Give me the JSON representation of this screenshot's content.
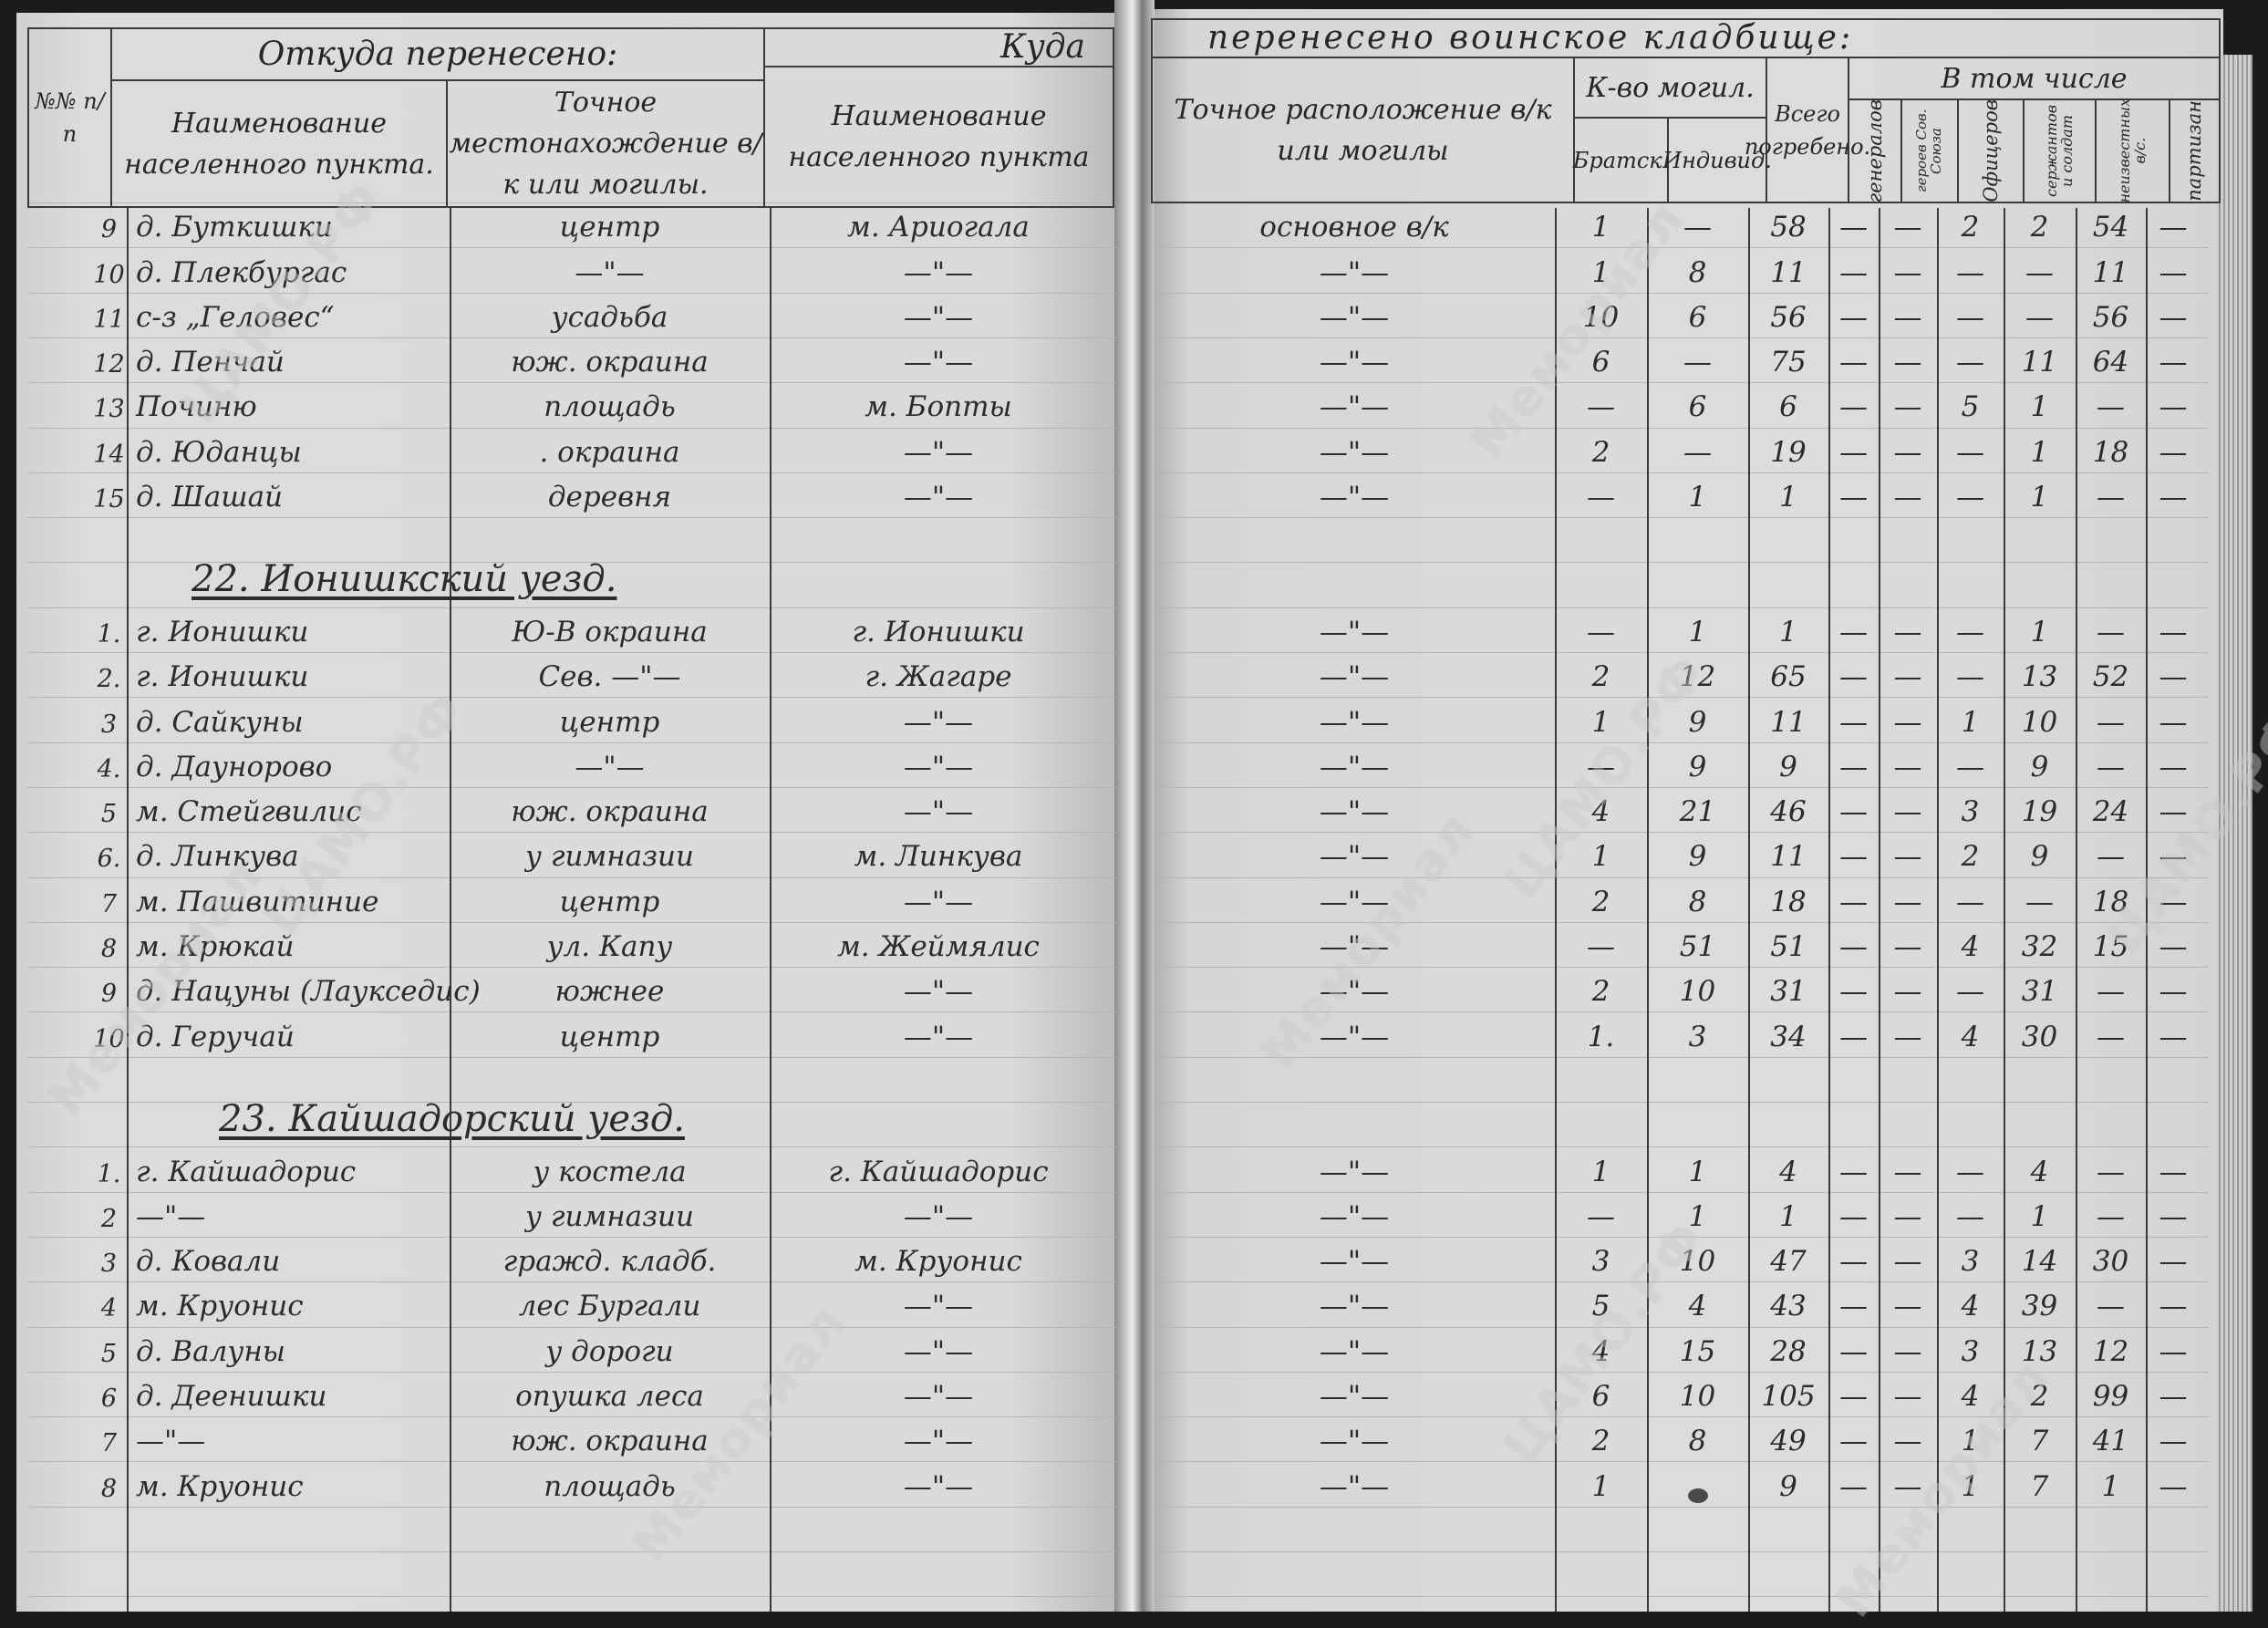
{
  "header": {
    "left": {
      "number_col": "№№ п/п",
      "from_title": "Откуда перенесено:",
      "from_place": "Наименование населенного пункта.",
      "from_location": "Точное местонахождение в/к или могилы.",
      "to_title": "Куда",
      "to_place": "Наименование населенного пункта"
    },
    "right": {
      "to_title": "перенесено воинское кладбище:",
      "to_location": "Точное расположение в/к или могилы",
      "graves_title": "К-во могил.",
      "mass": "Братск.",
      "individual": "Индивид.",
      "total": "Всего погребено.",
      "including_title": "В том числе",
      "generals": "генералов",
      "heroes": "героев Сов. Союза",
      "officers": "Офицеров",
      "soldiers": "сержантов и солдат",
      "unknown": "неизвестных в/с.",
      "partisans": "партизан"
    }
  },
  "sections": [
    {
      "heading": "",
      "rows": [
        {
          "no": "9",
          "from_place": "д. Буткишки",
          "from_location": "центр",
          "to_place": "м. Ариогала",
          "to_location": "основное в/к",
          "mass": "1",
          "individual": "—",
          "total": "58",
          "generals": "—",
          "heroes": "—",
          "officers": "2",
          "soldiers": "2",
          "unknown": "54",
          "partisans": "—"
        },
        {
          "no": "10",
          "from_place": "д. Плекбургас",
          "from_location": "—\"—",
          "to_place": "—\"—",
          "to_location": "—\"—",
          "mass": "1",
          "individual": "8",
          "total": "11",
          "generals": "—",
          "heroes": "—",
          "officers": "—",
          "soldiers": "—",
          "unknown": "11",
          "partisans": "—"
        },
        {
          "no": "11",
          "from_place": "с-з „Геловес“",
          "from_location": "усадьба",
          "to_place": "—\"—",
          "to_location": "—\"—",
          "mass": "10",
          "individual": "6",
          "total": "56",
          "generals": "—",
          "heroes": "—",
          "officers": "—",
          "soldiers": "—",
          "unknown": "56",
          "partisans": "—"
        },
        {
          "no": "12",
          "from_place": "д. Пенчай",
          "from_location": "юж. окраина",
          "to_place": "—\"—",
          "to_location": "—\"—",
          "mass": "6",
          "individual": "—",
          "total": "75",
          "generals": "—",
          "heroes": "—",
          "officers": "—",
          "soldiers": "11",
          "unknown": "64",
          "partisans": "—"
        },
        {
          "no": "13",
          "from_place": "Починю",
          "from_location": "площадь",
          "to_place": "м. Бопты",
          "to_location": "—\"—",
          "mass": "—",
          "individual": "6",
          "total": "6",
          "generals": "—",
          "heroes": "—",
          "officers": "5",
          "soldiers": "1",
          "unknown": "—",
          "partisans": "—"
        },
        {
          "no": "14",
          "from_place": "д. Юданцы",
          "from_location": ". окраина",
          "to_place": "—\"—",
          "to_location": "—\"—",
          "mass": "2",
          "individual": "—",
          "total": "19",
          "generals": "—",
          "heroes": "—",
          "officers": "—",
          "soldiers": "1",
          "unknown": "18",
          "partisans": "—"
        },
        {
          "no": "15",
          "from_place": "д. Шашай",
          "from_location": "деревня",
          "to_place": "—\"—",
          "to_location": "—\"—",
          "mass": "—",
          "individual": "1",
          "total": "1",
          "generals": "—",
          "heroes": "—",
          "officers": "—",
          "soldiers": "1",
          "unknown": "—",
          "partisans": "—"
        }
      ]
    },
    {
      "heading": "22. Ионишкский уезд.",
      "rows": [
        {
          "no": "1.",
          "from_place": "г. Ионишки",
          "from_location": "Ю-В окраина",
          "to_place": "г. Ионишки",
          "to_location": "—\"—",
          "mass": "—",
          "individual": "1",
          "total": "1",
          "generals": "—",
          "heroes": "—",
          "officers": "—",
          "soldiers": "1",
          "unknown": "—",
          "partisans": "—"
        },
        {
          "no": "2.",
          "from_place": "г. Ионишки",
          "from_location": "Сев.   —\"—",
          "to_place": "г. Жагаре",
          "to_location": "—\"—",
          "mass": "2",
          "individual": "12",
          "total": "65",
          "generals": "—",
          "heroes": "—",
          "officers": "—",
          "soldiers": "13",
          "unknown": "52",
          "partisans": "—"
        },
        {
          "no": "3",
          "from_place": "д. Сайкуны",
          "from_location": "центр",
          "to_place": "—\"—",
          "to_location": "—\"—",
          "mass": "1",
          "individual": "9",
          "total": "11",
          "generals": "—",
          "heroes": "—",
          "officers": "1",
          "soldiers": "10",
          "unknown": "—",
          "partisans": "—"
        },
        {
          "no": "4.",
          "from_place": "д. Даунорово",
          "from_location": "—\"—",
          "to_place": "—\"—",
          "to_location": "—\"—",
          "mass": "—",
          "individual": "9",
          "total": "9",
          "generals": "—",
          "heroes": "—",
          "officers": "—",
          "soldiers": "9",
          "unknown": "—",
          "partisans": "—"
        },
        {
          "no": "5",
          "from_place": "м. Стейгвилис",
          "from_location": "юж. окраина",
          "to_place": "—\"—",
          "to_location": "—\"—",
          "mass": "4",
          "individual": "21",
          "total": "46",
          "generals": "—",
          "heroes": "—",
          "officers": "3",
          "soldiers": "19",
          "unknown": "24",
          "partisans": "—"
        },
        {
          "no": "6.",
          "from_place": "д. Линкува",
          "from_location": "у гимназии",
          "to_place": "м. Линкува",
          "to_location": "—\"—",
          "mass": "1",
          "individual": "9",
          "total": "11",
          "generals": "—",
          "heroes": "—",
          "officers": "2",
          "soldiers": "9",
          "unknown": "—",
          "partisans": "—"
        },
        {
          "no": "7",
          "from_place": "м. Пашвитиние",
          "from_location": "центр",
          "to_place": "—\"—",
          "to_location": "—\"—",
          "mass": "2",
          "individual": "8",
          "total": "18",
          "generals": "—",
          "heroes": "—",
          "officers": "—",
          "soldiers": "—",
          "unknown": "18",
          "partisans": "—"
        },
        {
          "no": "8",
          "from_place": "м. Крюкай",
          "from_location": "ул. Капу",
          "to_place": "м. Жеймялис",
          "to_location": "—\"—",
          "mass": "—",
          "individual": "51",
          "total": "51",
          "generals": "—",
          "heroes": "—",
          "officers": "4",
          "soldiers": "32",
          "unknown": "15",
          "partisans": "—"
        },
        {
          "no": "9",
          "from_place": "д. Нацуны (Лаукседис)",
          "from_location": "южнее",
          "to_place": "—\"—",
          "to_location": "—\"—",
          "mass": "2",
          "individual": "10",
          "total": "31",
          "generals": "—",
          "heroes": "—",
          "officers": "—",
          "soldiers": "31",
          "unknown": "—",
          "partisans": "—"
        },
        {
          "no": "10",
          "from_place": "д. Геручай",
          "from_location": "центр",
          "to_place": "—\"—",
          "to_location": "—\"—",
          "mass": "1.",
          "individual": "3",
          "total": "34",
          "generals": "—",
          "heroes": "—",
          "officers": "4",
          "soldiers": "30",
          "unknown": "—",
          "partisans": "—"
        }
      ]
    },
    {
      "heading": "23. Кайшадорский уезд.",
      "rows": [
        {
          "no": "1.",
          "from_place": "г. Кайшадорис",
          "from_location": "у костела",
          "to_place": "г. Кайшадорис",
          "to_location": "—\"—",
          "mass": "1",
          "individual": "1",
          "total": "4",
          "generals": "—",
          "heroes": "—",
          "officers": "—",
          "soldiers": "4",
          "unknown": "—",
          "partisans": "—"
        },
        {
          "no": "2",
          "from_place": "—\"—",
          "from_location": "у гимназии",
          "to_place": "—\"—",
          "to_location": "—\"—",
          "mass": "—",
          "individual": "1",
          "total": "1",
          "generals": "—",
          "heroes": "—",
          "officers": "—",
          "soldiers": "1",
          "unknown": "—",
          "partisans": "—"
        },
        {
          "no": "3",
          "from_place": "д. Ковали",
          "from_location": "гражд. кладб.",
          "to_place": "м. Круонис",
          "to_location": "—\"—",
          "mass": "3",
          "individual": "10",
          "total": "47",
          "generals": "—",
          "heroes": "—",
          "officers": "3",
          "soldiers": "14",
          "unknown": "30",
          "partisans": "—"
        },
        {
          "no": "4",
          "from_place": "м. Круонис",
          "from_location": "лес Бургали",
          "to_place": "—\"—",
          "to_location": "—\"—",
          "mass": "5",
          "individual": "4",
          "total": "43",
          "generals": "—",
          "heroes": "—",
          "officers": "4",
          "soldiers": "39",
          "unknown": "—",
          "partisans": "—"
        },
        {
          "no": "5",
          "from_place": "д. Валуны",
          "from_location": "у дороги",
          "to_place": "—\"—",
          "to_location": "—\"—",
          "mass": "4",
          "individual": "15",
          "total": "28",
          "generals": "—",
          "heroes": "—",
          "officers": "3",
          "soldiers": "13",
          "unknown": "12",
          "partisans": "—"
        },
        {
          "no": "6",
          "from_place": "д. Деенишки",
          "from_location": "опушка леса",
          "to_place": "—\"—",
          "to_location": "—\"—",
          "mass": "6",
          "individual": "10",
          "total": "105",
          "generals": "—",
          "heroes": "—",
          "officers": "4",
          "soldiers": "2",
          "unknown": "99",
          "partisans": "—"
        },
        {
          "no": "7",
          "from_place": "—\"—",
          "from_location": "юж. окраина",
          "to_place": "—\"—",
          "to_location": "—\"—",
          "mass": "2",
          "individual": "8",
          "total": "49",
          "generals": "—",
          "heroes": "—",
          "officers": "1",
          "soldiers": "7",
          "unknown": "41",
          "partisans": "—"
        },
        {
          "no": "8",
          "from_place": "м. Круонис",
          "from_location": "площадь",
          "to_place": "—\"—",
          "to_location": "—\"—",
          "mass": "1",
          "individual": null,
          "total": "9",
          "generals": "—",
          "heroes": "—",
          "officers": "1",
          "soldiers": "7",
          "unknown": "1",
          "partisans": "—"
        }
      ]
    }
  ],
  "watermarks": [
    "Мемориал",
    "ЦАМО.РФ"
  ],
  "colors": {
    "paper": "#d9d9d7",
    "ink": "#2b2b2b",
    "background": "#1b1b1b"
  }
}
